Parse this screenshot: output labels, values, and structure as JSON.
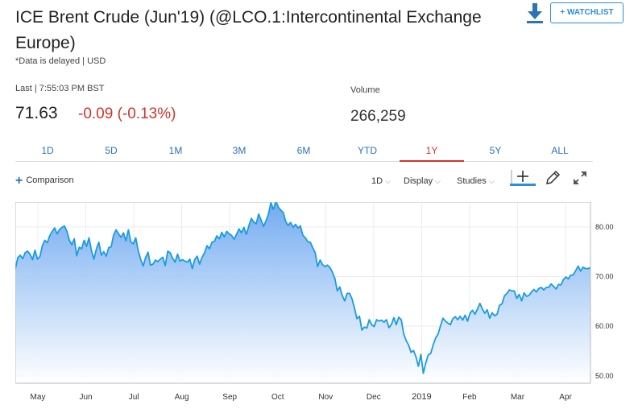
{
  "header": {
    "title": "ICE Brent Crude (Jun'19) (@LCO.1:Intercontinental Exchange Europe)",
    "delayed_note": "*Data is delayed | USD",
    "watchlist_label": "+ WATCHLIST",
    "download_icon": "download-icon"
  },
  "quote": {
    "last_label": "Last | 7:55:03 PM BST",
    "price": "71.63",
    "change": "-0.09 (-0.13%)",
    "volume_label": "Volume",
    "volume": "266,259"
  },
  "tabs": [
    {
      "label": "1D"
    },
    {
      "label": "5D"
    },
    {
      "label": "1M"
    },
    {
      "label": "3M"
    },
    {
      "label": "6M"
    },
    {
      "label": "YTD"
    },
    {
      "label": "1Y",
      "active": true
    },
    {
      "label": "5Y"
    },
    {
      "label": "ALL"
    }
  ],
  "toolbar": {
    "comparison": "Comparison",
    "interval": "1D",
    "display": "Display",
    "studies": "Studies"
  },
  "colors": {
    "accent": "#2b74b8",
    "negative": "#d0342c",
    "line": "#1a9be0",
    "fill": "#7fb4f0"
  },
  "chart_data": {
    "type": "area",
    "title": "",
    "xlabel": "",
    "ylabel": "",
    "ylim": [
      48.5,
      85
    ],
    "y_ticks": [
      "80.00",
      "70.00",
      "60.00",
      "50.00"
    ],
    "x_labels": [
      "May",
      "Jun",
      "Jul",
      "Aug",
      "Sep",
      "Oct",
      "Nov",
      "Dec",
      "2019",
      "Feb",
      "Mar",
      "Apr"
    ],
    "grid": true,
    "series": [
      {
        "values": [
          71.5,
          73.8,
          74.3,
          73.6,
          74.8,
          75.1,
          74.5,
          73.4,
          75.3,
          73.5,
          74.0,
          76.2,
          77.3,
          76.8,
          78.2,
          79.1,
          79.8,
          78.6,
          79.5,
          79.9,
          80.2,
          79.1,
          77.3,
          76.4,
          77.6,
          74.2,
          75.9,
          75.6,
          77.3,
          76.1,
          77.8,
          75.2,
          73.5,
          75.6,
          76.9,
          74.3,
          75.0,
          74.1,
          75.8,
          76.0,
          78.4,
          79.4,
          78.6,
          77.9,
          78.8,
          77.2,
          79.4,
          77.0,
          76.6,
          77.8,
          75.2,
          73.5,
          72.1,
          73.8,
          74.9,
          72.3,
          72.5,
          73.3,
          73.0,
          73.5,
          73.9,
          72.2,
          75.1,
          74.8,
          73.7,
          72.9,
          74.5,
          73.1,
          73.4,
          73.1,
          72.9,
          73.5,
          71.6,
          73.4,
          74.1,
          72.5,
          73.9,
          74.8,
          76.2,
          75.6,
          76.9,
          77.1,
          78.2,
          77.6,
          78.9,
          78.0,
          79.1,
          78.6,
          78.3,
          77.5,
          78.5,
          79.6,
          78.8,
          79.9,
          78.5,
          80.2,
          81.7,
          81.0,
          80.6,
          82.6,
          81.4,
          80.1,
          81.2,
          82.6,
          84.9,
          83.5,
          85.2,
          84.0,
          83.4,
          82.9,
          81.1,
          80.3,
          80.9,
          79.9,
          80.5,
          79.8,
          80.2,
          78.3,
          77.8,
          77.0,
          76.9,
          75.8,
          74.8,
          72.0,
          73.3,
          72.4,
          72.0,
          72.3,
          71.8,
          70.9,
          69.6,
          67.1,
          67.9,
          66.2,
          65.1,
          66.6,
          66.6,
          65.5,
          63.6,
          61.5,
          62.0,
          59.2,
          59.8,
          59.6,
          61.3,
          60.3,
          59.9,
          61.3,
          61.0,
          61.2,
          60.8,
          61.3,
          59.7,
          60.3,
          61.7,
          60.3,
          61.8,
          61.3,
          58.5,
          57.1,
          56.2,
          54.7,
          55.1,
          53.8,
          51.9,
          54.3,
          50.5,
          52.6,
          54.2,
          54.5,
          56.2,
          57.6,
          58.4,
          60.1,
          61.6,
          61.0,
          60.6,
          60.3,
          61.5,
          61.9,
          61.3,
          62.0,
          61.2,
          62.2,
          61.0,
          62.6,
          63.2,
          62.4,
          63.4,
          64.6,
          63.5,
          62.6,
          63.3,
          61.6,
          62.7,
          62.1,
          62.4,
          64.2,
          64.5,
          66.1,
          66.6,
          67.3,
          67.1,
          67.1,
          65.6,
          66.4,
          65.1,
          66.7,
          66.0,
          66.2,
          66.9,
          67.4,
          66.9,
          67.6,
          67.8,
          67.3,
          67.8,
          67.8,
          68.5,
          68.0,
          67.5,
          68.4,
          68.3,
          69.4,
          69.9,
          69.5,
          70.3,
          70.3,
          71.2,
          72.1,
          71.1,
          71.9,
          71.6,
          71.6,
          71.8
        ]
      }
    ]
  }
}
